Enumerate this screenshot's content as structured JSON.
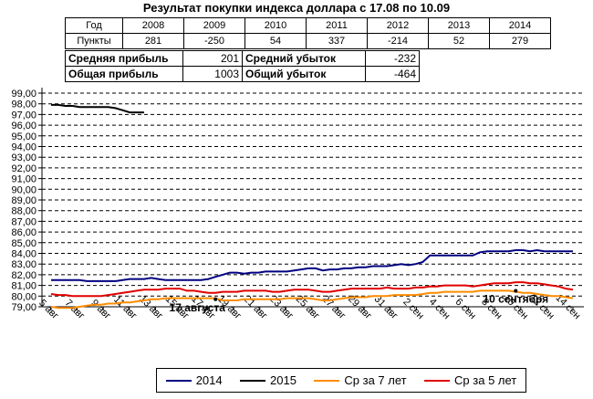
{
  "header": {
    "title": "Результат покупки индекса доллара с 17.08 по 10.09",
    "year_row_label": "Год",
    "points_row_label": "Пункты",
    "years": [
      "2008",
      "2009",
      "2010",
      "2011",
      "2012",
      "2013",
      "2014"
    ],
    "points": [
      "281",
      "-250",
      "54",
      "337",
      "-214",
      "52",
      "279"
    ]
  },
  "summary": {
    "avg_profit_label": "Средняя прибыль",
    "avg_profit_value": "201",
    "total_profit_label": "Общая прибыль",
    "total_profit_value": "1003",
    "avg_loss_label": "Средний убыток",
    "avg_loss_value": "-232",
    "total_loss_label": "Общий убыток",
    "total_loss_value": "-464"
  },
  "colors": {
    "s2014": "#000080",
    "s2015": "#000000",
    "avg7": "#ff8c00",
    "avg5": "#e00000"
  },
  "chart_data": {
    "type": "line",
    "ylim": [
      79,
      99
    ],
    "ytick_step": 1,
    "grid": "horizontal-dashed",
    "legend_position": "bottom",
    "x_labels": [
      "5 авг",
      "7 авг",
      "9 авг",
      "11 авг",
      "13 авг",
      "15 авг",
      "17 авг",
      "19 авг",
      "21 авг",
      "23 авг",
      "25 авг",
      "27 авг",
      "29 авг",
      "31 авг",
      "2 сен",
      "4 сен",
      "6 сен",
      "8 сен",
      "10 сен",
      "12 сен",
      "14 сен"
    ],
    "y_labels": [
      "79,00",
      "80,00",
      "81,00",
      "82,00",
      "83,00",
      "84,00",
      "85,00",
      "86,00",
      "87,00",
      "88,00",
      "89,00",
      "90,00",
      "91,00",
      "92,00",
      "93,00",
      "94,00",
      "95,00",
      "96,00",
      "97,00",
      "98,00",
      "99,00"
    ],
    "series": [
      {
        "name": "2014",
        "color_key": "s2014",
        "values": [
          81.5,
          81.5,
          81.5,
          81.5,
          81.5,
          81.4,
          81.4,
          81.4,
          81.4,
          81.4,
          81.5,
          81.6,
          81.6,
          81.6,
          81.7,
          81.6,
          81.5,
          81.5,
          81.5,
          81.5,
          81.5,
          81.5,
          81.6,
          81.8,
          82.0,
          82.2,
          82.2,
          82.1,
          82.2,
          82.2,
          82.3,
          82.3,
          82.3,
          82.3,
          82.4,
          82.5,
          82.6,
          82.6,
          82.4,
          82.5,
          82.5,
          82.6,
          82.6,
          82.7,
          82.7,
          82.8,
          82.8,
          82.8,
          82.9,
          83.0,
          82.9,
          83.0,
          83.2,
          83.8,
          83.8,
          83.8,
          83.8,
          83.8,
          83.8,
          83.8,
          84.1,
          84.2,
          84.2,
          84.2,
          84.2,
          84.3,
          84.3,
          84.2,
          84.3,
          84.2,
          84.2,
          84.2,
          84.2,
          84.2
        ]
      },
      {
        "name": "2015",
        "color_key": "s2015",
        "values": [
          97.9,
          97.9,
          97.8,
          97.8,
          97.7,
          97.7,
          97.7,
          97.7,
          97.7,
          97.6,
          97.4,
          97.2,
          97.2,
          97.2
        ]
      },
      {
        "name": "Ср за 7 лет",
        "color_key": "avg7",
        "values": [
          79.0,
          78.9,
          78.9,
          78.9,
          79.0,
          79.1,
          79.2,
          79.2,
          79.3,
          79.3,
          79.4,
          79.4,
          79.5,
          79.6,
          79.7,
          79.7,
          79.8,
          79.8,
          79.8,
          79.8,
          79.8,
          79.8,
          79.8,
          79.8,
          79.6,
          79.6,
          79.6,
          79.7,
          79.7,
          79.7,
          79.7,
          79.7,
          79.7,
          79.8,
          79.8,
          79.8,
          79.8,
          79.7,
          79.6,
          79.6,
          79.7,
          79.8,
          79.9,
          79.9,
          79.9,
          80.0,
          80.0,
          80.0,
          80.1,
          80.1,
          80.1,
          80.1,
          80.2,
          80.3,
          80.3,
          80.4,
          80.4,
          80.4,
          80.4,
          80.4,
          80.5,
          80.5,
          80.5,
          80.5,
          80.5,
          80.4,
          80.3,
          80.3,
          80.2,
          80.1,
          80.0,
          80.0,
          79.9,
          79.8
        ]
      },
      {
        "name": "Ср за 5 лет",
        "color_key": "avg5",
        "values": [
          80.2,
          80.1,
          80.1,
          80.0,
          80.0,
          80.0,
          80.0,
          80.0,
          80.1,
          80.2,
          80.3,
          80.4,
          80.5,
          80.6,
          80.6,
          80.6,
          80.7,
          80.7,
          80.7,
          80.5,
          80.5,
          80.4,
          80.3,
          80.3,
          80.4,
          80.4,
          80.4,
          80.5,
          80.5,
          80.5,
          80.5,
          80.4,
          80.4,
          80.5,
          80.6,
          80.6,
          80.6,
          80.5,
          80.4,
          80.4,
          80.5,
          80.6,
          80.7,
          80.7,
          80.7,
          80.7,
          80.7,
          80.8,
          80.7,
          80.7,
          80.7,
          80.8,
          80.8,
          80.9,
          80.9,
          81.0,
          81.0,
          81.0,
          81.0,
          80.9,
          81.0,
          81.1,
          81.2,
          81.2,
          81.2,
          81.3,
          81.3,
          81.2,
          81.2,
          81.1,
          81.0,
          80.9,
          80.7,
          80.6
        ]
      }
    ],
    "annotations": [
      {
        "label": "17 августа",
        "x_index": 23,
        "y": 79.7
      },
      {
        "label": "10 сентября",
        "x_index": 65,
        "y": 80.5
      }
    ]
  }
}
